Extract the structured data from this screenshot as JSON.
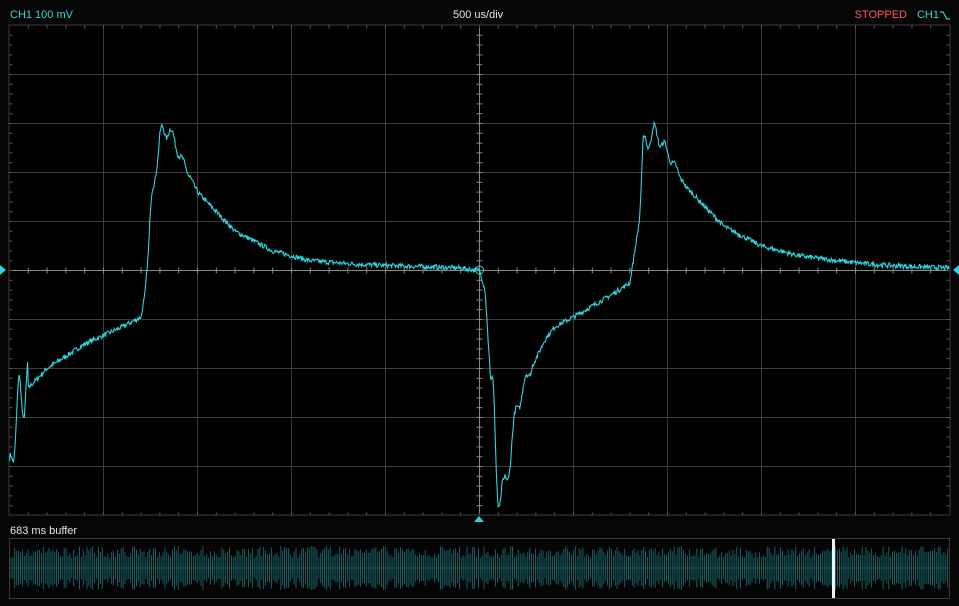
{
  "header": {
    "channel_label": "CH1 100 mV",
    "timebase": "500 us/div",
    "status": "STOPPED",
    "trigger_source": "CH1",
    "trigger_edge_icon": "falling-edge-icon"
  },
  "buffer": {
    "label": "683 ms buffer"
  },
  "colors": {
    "trace": "#2fd3dc",
    "status": "#ff5a5a",
    "grid": "#3c3c3c",
    "text": "#e6e6e6"
  },
  "chart_data": {
    "type": "line",
    "time_per_div_us": 500,
    "volts_per_div_mv": 100,
    "xlim_us": [
      -2500,
      2500
    ],
    "ylim_mv": [
      -500,
      500
    ],
    "grid": true,
    "series": [
      {
        "x": [
          -2500,
          -2450,
          -2300,
          -2100,
          -1900,
          -1800,
          -1780,
          -1720,
          -1700,
          -1650,
          -1600,
          -1500,
          -1300,
          -1100,
          -900,
          -700,
          -500,
          -300,
          -100,
          0,
          30,
          60,
          90,
          130,
          160,
          200,
          250,
          300,
          350,
          400,
          500,
          700,
          800,
          850,
          870,
          900,
          950,
          1000,
          1100,
          1300,
          1500,
          1700,
          1900,
          2100,
          2300,
          2500
        ],
        "y": [
          -420,
          -260,
          -200,
          -150,
          -115,
          -95,
          -50,
          230,
          270,
          290,
          240,
          160,
          80,
          40,
          20,
          14,
          10,
          8,
          5,
          0,
          -40,
          -230,
          -410,
          -470,
          -380,
          -280,
          -220,
          -180,
          -140,
          -115,
          -95,
          -50,
          -25,
          100,
          230,
          280,
          275,
          240,
          170,
          90,
          50,
          30,
          20,
          12,
          8,
          5
        ]
      }
    ]
  }
}
